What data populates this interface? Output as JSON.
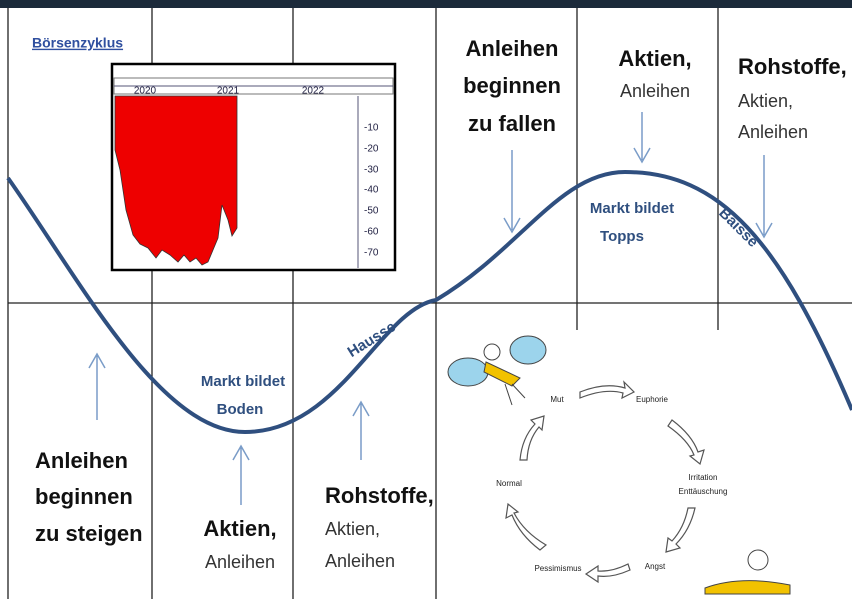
{
  "title": "Börsenzyklus",
  "inset": {
    "years": [
      "2020",
      "2021",
      "2022"
    ],
    "levels": [
      "-10",
      "-20",
      "-30",
      "-40",
      "-50",
      "-60",
      "-70"
    ]
  },
  "phases": [
    "Hausse",
    "Baisse"
  ],
  "markers": {
    "bottom": [
      "Markt bildet",
      "Boden"
    ],
    "top": [
      "Markt bildet",
      "Topps"
    ]
  },
  "top_labels": [
    {
      "heading": [
        "Anleihen",
        "beginnen",
        "zu  fallen"
      ]
    },
    {
      "heading": [
        "Aktien,"
      ],
      "sub": [
        "Anleihen"
      ]
    },
    {
      "heading": [
        "Rohstoffe,"
      ],
      "sub": [
        "Aktien,",
        "Anleihen"
      ]
    }
  ],
  "bottom_labels": [
    {
      "heading": [
        "Anleihen",
        "beginnen",
        "zu steigen"
      ]
    },
    {
      "heading": [
        "Aktien,"
      ],
      "sub": [
        "Anleihen"
      ]
    },
    {
      "heading": [
        "Rohstoffe,"
      ],
      "sub": [
        "Aktien,",
        "Anleihen"
      ]
    }
  ],
  "emotions": [
    "Mut",
    "Euphorie",
    "Irritation",
    "Enttäuschung",
    "Angst",
    "Pessimismus",
    "Normal"
  ]
}
